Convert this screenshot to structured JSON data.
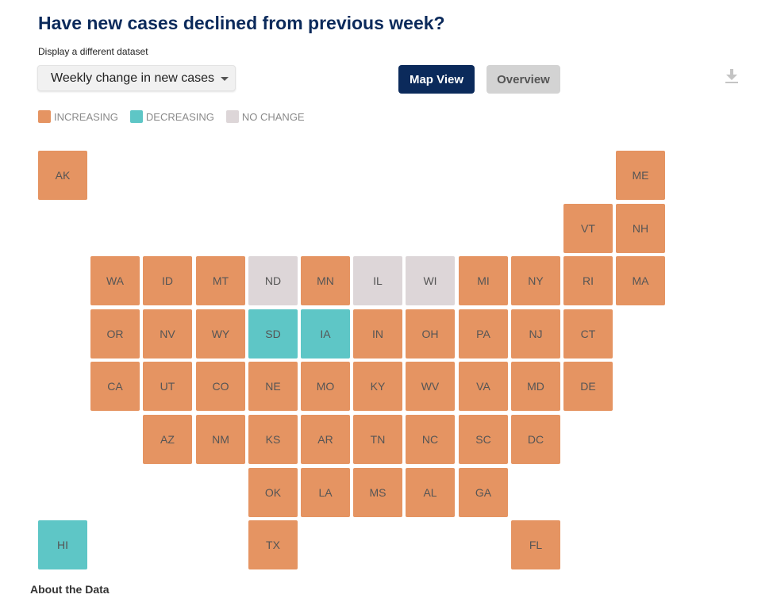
{
  "header": {
    "title": "Have new cases declined from previous week?",
    "dataset_label": "Display a different dataset"
  },
  "dataset_select": {
    "selected": "Weekly change in new cases"
  },
  "view_buttons": {
    "map_view": "Map View",
    "overview": "Overview"
  },
  "download": {
    "icon": "download-icon"
  },
  "colors": {
    "increasing": "#e59462",
    "decreasing": "#5ec6c6",
    "no_change": "#ddd6d8",
    "title": "#0b2a5b"
  },
  "legend": [
    {
      "key": "increasing",
      "label": "INCREASING"
    },
    {
      "key": "decreasing",
      "label": "DECREASING"
    },
    {
      "key": "no_change",
      "label": "NO CHANGE"
    }
  ],
  "states": [
    {
      "abbr": "AK",
      "status": "increasing",
      "row": 0,
      "col": 0
    },
    {
      "abbr": "ME",
      "status": "increasing",
      "row": 0,
      "col": 11
    },
    {
      "abbr": "VT",
      "status": "increasing",
      "row": 1,
      "col": 10
    },
    {
      "abbr": "NH",
      "status": "increasing",
      "row": 1,
      "col": 11
    },
    {
      "abbr": "WA",
      "status": "increasing",
      "row": 2,
      "col": 1
    },
    {
      "abbr": "ID",
      "status": "increasing",
      "row": 2,
      "col": 2
    },
    {
      "abbr": "MT",
      "status": "increasing",
      "row": 2,
      "col": 3
    },
    {
      "abbr": "ND",
      "status": "no_change",
      "row": 2,
      "col": 4
    },
    {
      "abbr": "MN",
      "status": "increasing",
      "row": 2,
      "col": 5
    },
    {
      "abbr": "IL",
      "status": "no_change",
      "row": 2,
      "col": 6
    },
    {
      "abbr": "WI",
      "status": "no_change",
      "row": 2,
      "col": 7
    },
    {
      "abbr": "MI",
      "status": "increasing",
      "row": 2,
      "col": 8
    },
    {
      "abbr": "NY",
      "status": "increasing",
      "row": 2,
      "col": 9
    },
    {
      "abbr": "RI",
      "status": "increasing",
      "row": 2,
      "col": 10
    },
    {
      "abbr": "MA",
      "status": "increasing",
      "row": 2,
      "col": 11
    },
    {
      "abbr": "OR",
      "status": "increasing",
      "row": 3,
      "col": 1
    },
    {
      "abbr": "NV",
      "status": "increasing",
      "row": 3,
      "col": 2
    },
    {
      "abbr": "WY",
      "status": "increasing",
      "row": 3,
      "col": 3
    },
    {
      "abbr": "SD",
      "status": "decreasing",
      "row": 3,
      "col": 4
    },
    {
      "abbr": "IA",
      "status": "decreasing",
      "row": 3,
      "col": 5
    },
    {
      "abbr": "IN",
      "status": "increasing",
      "row": 3,
      "col": 6
    },
    {
      "abbr": "OH",
      "status": "increasing",
      "row": 3,
      "col": 7
    },
    {
      "abbr": "PA",
      "status": "increasing",
      "row": 3,
      "col": 8
    },
    {
      "abbr": "NJ",
      "status": "increasing",
      "row": 3,
      "col": 9
    },
    {
      "abbr": "CT",
      "status": "increasing",
      "row": 3,
      "col": 10
    },
    {
      "abbr": "CA",
      "status": "increasing",
      "row": 4,
      "col": 1
    },
    {
      "abbr": "UT",
      "status": "increasing",
      "row": 4,
      "col": 2
    },
    {
      "abbr": "CO",
      "status": "increasing",
      "row": 4,
      "col": 3
    },
    {
      "abbr": "NE",
      "status": "increasing",
      "row": 4,
      "col": 4
    },
    {
      "abbr": "MO",
      "status": "increasing",
      "row": 4,
      "col": 5
    },
    {
      "abbr": "KY",
      "status": "increasing",
      "row": 4,
      "col": 6
    },
    {
      "abbr": "WV",
      "status": "increasing",
      "row": 4,
      "col": 7
    },
    {
      "abbr": "VA",
      "status": "increasing",
      "row": 4,
      "col": 8
    },
    {
      "abbr": "MD",
      "status": "increasing",
      "row": 4,
      "col": 9
    },
    {
      "abbr": "DE",
      "status": "increasing",
      "row": 4,
      "col": 10
    },
    {
      "abbr": "AZ",
      "status": "increasing",
      "row": 5,
      "col": 2
    },
    {
      "abbr": "NM",
      "status": "increasing",
      "row": 5,
      "col": 3
    },
    {
      "abbr": "KS",
      "status": "increasing",
      "row": 5,
      "col": 4
    },
    {
      "abbr": "AR",
      "status": "increasing",
      "row": 5,
      "col": 5
    },
    {
      "abbr": "TN",
      "status": "increasing",
      "row": 5,
      "col": 6
    },
    {
      "abbr": "NC",
      "status": "increasing",
      "row": 5,
      "col": 7
    },
    {
      "abbr": "SC",
      "status": "increasing",
      "row": 5,
      "col": 8
    },
    {
      "abbr": "DC",
      "status": "increasing",
      "row": 5,
      "col": 9
    },
    {
      "abbr": "OK",
      "status": "increasing",
      "row": 6,
      "col": 4
    },
    {
      "abbr": "LA",
      "status": "increasing",
      "row": 6,
      "col": 5
    },
    {
      "abbr": "MS",
      "status": "increasing",
      "row": 6,
      "col": 6
    },
    {
      "abbr": "AL",
      "status": "increasing",
      "row": 6,
      "col": 7
    },
    {
      "abbr": "GA",
      "status": "increasing",
      "row": 6,
      "col": 8
    },
    {
      "abbr": "HI",
      "status": "decreasing",
      "row": 7,
      "col": 0
    },
    {
      "abbr": "TX",
      "status": "increasing",
      "row": 7,
      "col": 4
    },
    {
      "abbr": "FL",
      "status": "increasing",
      "row": 7,
      "col": 9
    }
  ],
  "footer": {
    "about": "About the Data"
  }
}
